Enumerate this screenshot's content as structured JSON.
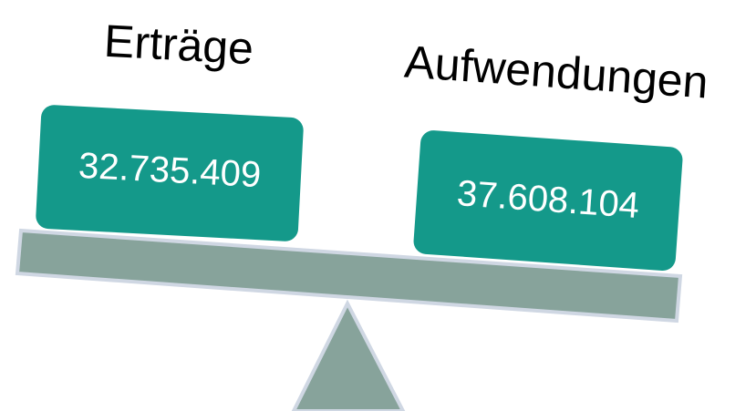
{
  "left": {
    "label": "Erträge",
    "value": "32.735.409"
  },
  "right": {
    "label": "Aufwendungen",
    "value": "37.608.104"
  }
}
